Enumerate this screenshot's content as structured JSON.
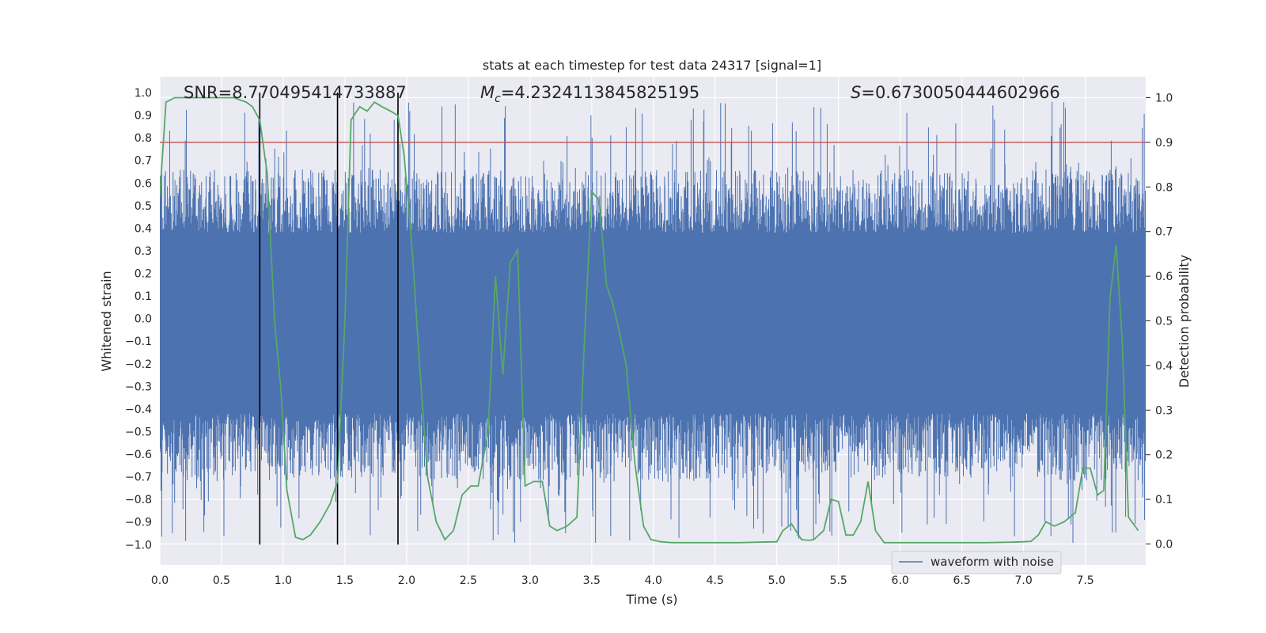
{
  "chart_data": {
    "type": "line",
    "title": "stats at each timestep for test data 24317 [signal=1]",
    "xlabel": "Time (s)",
    "ylabel": "Whitened strain",
    "ylabel_right": "Detection probability",
    "xlim": [
      0.0,
      7.99
    ],
    "ylim": [
      -1.09,
      1.07
    ],
    "ylim_right": [
      -0.047,
      1.047
    ],
    "x_ticks": [
      0.0,
      0.5,
      1.0,
      1.5,
      2.0,
      2.5,
      3.0,
      3.5,
      4.0,
      4.5,
      5.0,
      5.5,
      6.0,
      6.5,
      7.0,
      7.5
    ],
    "x_tick_labels": [
      "0.0",
      "0.5",
      "1.0",
      "1.5",
      "2.0",
      "2.5",
      "3.0",
      "3.5",
      "4.0",
      "4.5",
      "5.0",
      "5.5",
      "6.0",
      "6.5",
      "7.0",
      "7.5"
    ],
    "y_ticks": [
      1.0,
      0.9,
      0.8,
      0.7,
      0.6,
      0.5,
      0.4,
      0.3,
      0.2,
      0.1,
      0.0,
      -0.1,
      -0.2,
      -0.3,
      -0.4,
      -0.5,
      -0.6,
      -0.7,
      -0.8,
      -0.9,
      -1.0
    ],
    "y_tick_labels": [
      "1.0",
      "0.9",
      "0.8",
      "0.7",
      "0.6",
      "0.5",
      "0.4",
      "0.3",
      "0.2",
      "0.1",
      "0.0",
      "−0.1",
      "−0.2",
      "−0.3",
      "−0.4",
      "−0.5",
      "−0.6",
      "−0.7",
      "−0.8",
      "−0.9",
      "−1.0"
    ],
    "y_right_ticks": [
      1.0,
      0.9,
      0.8,
      0.7,
      0.6,
      0.5,
      0.4,
      0.3,
      0.2,
      0.1,
      0.0
    ],
    "y_right_tick_labels": [
      "1.0",
      "0.9",
      "0.8",
      "0.7",
      "0.6",
      "0.5",
      "0.4",
      "0.3",
      "0.2",
      "0.1",
      "0.0"
    ],
    "annotations": {
      "snr": "SNR=8.770495414733887",
      "mc_symbol": "M",
      "mc_subscript": "c",
      "mc_value": "=4.2324113845825195",
      "s_symbol": "S",
      "s_value": "=0.6730050444602966"
    },
    "threshold_line": {
      "axis": "right",
      "value": 0.9,
      "color": "#c44e52"
    },
    "vertical_lines": [
      0.81,
      1.44,
      1.93
    ],
    "series": [
      {
        "name": "waveform with noise",
        "axis": "left",
        "color": "#4c72b0",
        "style": "dense noise",
        "band": [
          -0.42,
          0.38
        ],
        "peak_extent": [
          -1.0,
          0.96
        ]
      },
      {
        "name": "detection probability",
        "axis": "right",
        "color": "#55a868",
        "x": [
          0.0,
          0.05,
          0.12,
          0.2,
          0.3,
          0.4,
          0.5,
          0.6,
          0.7,
          0.75,
          0.81,
          0.87,
          0.93,
          0.98,
          1.03,
          1.1,
          1.16,
          1.22,
          1.3,
          1.38,
          1.44,
          1.5,
          1.55,
          1.62,
          1.68,
          1.74,
          1.8,
          1.87,
          1.93,
          1.98,
          2.05,
          2.1,
          2.17,
          2.24,
          2.31,
          2.38,
          2.45,
          2.52,
          2.58,
          2.66,
          2.72,
          2.78,
          2.84,
          2.9,
          2.96,
          3.03,
          3.1,
          3.16,
          3.22,
          3.3,
          3.38,
          3.44,
          3.5,
          3.56,
          3.62,
          3.67,
          3.72,
          3.78,
          3.85,
          3.92,
          3.98,
          4.06,
          4.15,
          4.3,
          4.5,
          4.7,
          4.85,
          5.0,
          5.05,
          5.12,
          5.2,
          5.26,
          5.3,
          5.38,
          5.44,
          5.5,
          5.56,
          5.62,
          5.68,
          5.74,
          5.8,
          5.87,
          6.0,
          6.2,
          6.5,
          6.7,
          6.9,
          7.0,
          7.06,
          7.12,
          7.18,
          7.25,
          7.33,
          7.42,
          7.48,
          7.54,
          7.6,
          7.65,
          7.7,
          7.75,
          7.8,
          7.85,
          7.93
        ],
        "values": [
          0.78,
          0.99,
          1.0,
          1.0,
          1.0,
          1.0,
          1.0,
          1.0,
          0.99,
          0.98,
          0.95,
          0.83,
          0.5,
          0.35,
          0.12,
          0.015,
          0.01,
          0.02,
          0.05,
          0.09,
          0.14,
          0.5,
          0.95,
          0.98,
          0.97,
          0.99,
          0.98,
          0.97,
          0.96,
          0.87,
          0.64,
          0.42,
          0.15,
          0.05,
          0.01,
          0.03,
          0.11,
          0.13,
          0.13,
          0.25,
          0.6,
          0.38,
          0.63,
          0.66,
          0.13,
          0.14,
          0.14,
          0.04,
          0.03,
          0.04,
          0.06,
          0.45,
          0.79,
          0.77,
          0.58,
          0.54,
          0.48,
          0.4,
          0.18,
          0.04,
          0.01,
          0.005,
          0.003,
          0.003,
          0.003,
          0.003,
          0.004,
          0.005,
          0.03,
          0.045,
          0.01,
          0.008,
          0.01,
          0.03,
          0.1,
          0.095,
          0.02,
          0.02,
          0.05,
          0.14,
          0.03,
          0.003,
          0.003,
          0.003,
          0.003,
          0.003,
          0.004,
          0.005,
          0.006,
          0.02,
          0.05,
          0.04,
          0.05,
          0.07,
          0.17,
          0.17,
          0.11,
          0.12,
          0.55,
          0.67,
          0.45,
          0.06,
          0.03
        ]
      }
    ],
    "legend": {
      "entries": [
        "waveform with noise"
      ],
      "placement": "lower-right"
    },
    "grid": true
  }
}
